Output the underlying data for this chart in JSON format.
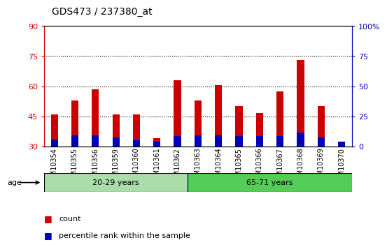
{
  "title": "GDS473 / 237380_at",
  "samples": [
    "GSM10354",
    "GSM10355",
    "GSM10356",
    "GSM10359",
    "GSM10360",
    "GSM10361",
    "GSM10362",
    "GSM10363",
    "GSM10364",
    "GSM10365",
    "GSM10366",
    "GSM10367",
    "GSM10368",
    "GSM10369",
    "GSM10370"
  ],
  "red_values": [
    46.0,
    53.0,
    58.5,
    46.0,
    46.0,
    34.0,
    63.0,
    53.0,
    60.5,
    50.0,
    46.5,
    57.5,
    73.0,
    50.0,
    32.0
  ],
  "blue_values": [
    33.5,
    35.5,
    35.5,
    34.5,
    33.0,
    32.5,
    35.0,
    35.5,
    35.5,
    35.0,
    35.0,
    35.0,
    37.0,
    34.5,
    32.5
  ],
  "baseline": 30.0,
  "ylim_left": [
    30,
    90
  ],
  "ylim_right": [
    0,
    100
  ],
  "yticks_left": [
    30,
    45,
    60,
    75,
    90
  ],
  "yticks_right": [
    0,
    25,
    50,
    75,
    100
  ],
  "ytick_labels_right": [
    "0",
    "25",
    "50",
    "75",
    "100%"
  ],
  "group1_indices": [
    0,
    1,
    2,
    3,
    4,
    5,
    6
  ],
  "group2_indices": [
    7,
    8,
    9,
    10,
    11,
    12,
    13,
    14
  ],
  "group1_label": "20-29 years",
  "group2_label": "65-71 years",
  "group1_color": "#aaddaa",
  "group2_color": "#55cc55",
  "group_label": "age",
  "bar_width": 0.35,
  "red_color": "#CC0000",
  "blue_color": "#0000BB",
  "bg_color": "#FFFFFF",
  "axis_left_color": "#CC0000",
  "axis_right_color": "#0000BB",
  "legend_items": [
    "count",
    "percentile rank within the sample"
  ],
  "dotted_lines": [
    45,
    60,
    75
  ]
}
